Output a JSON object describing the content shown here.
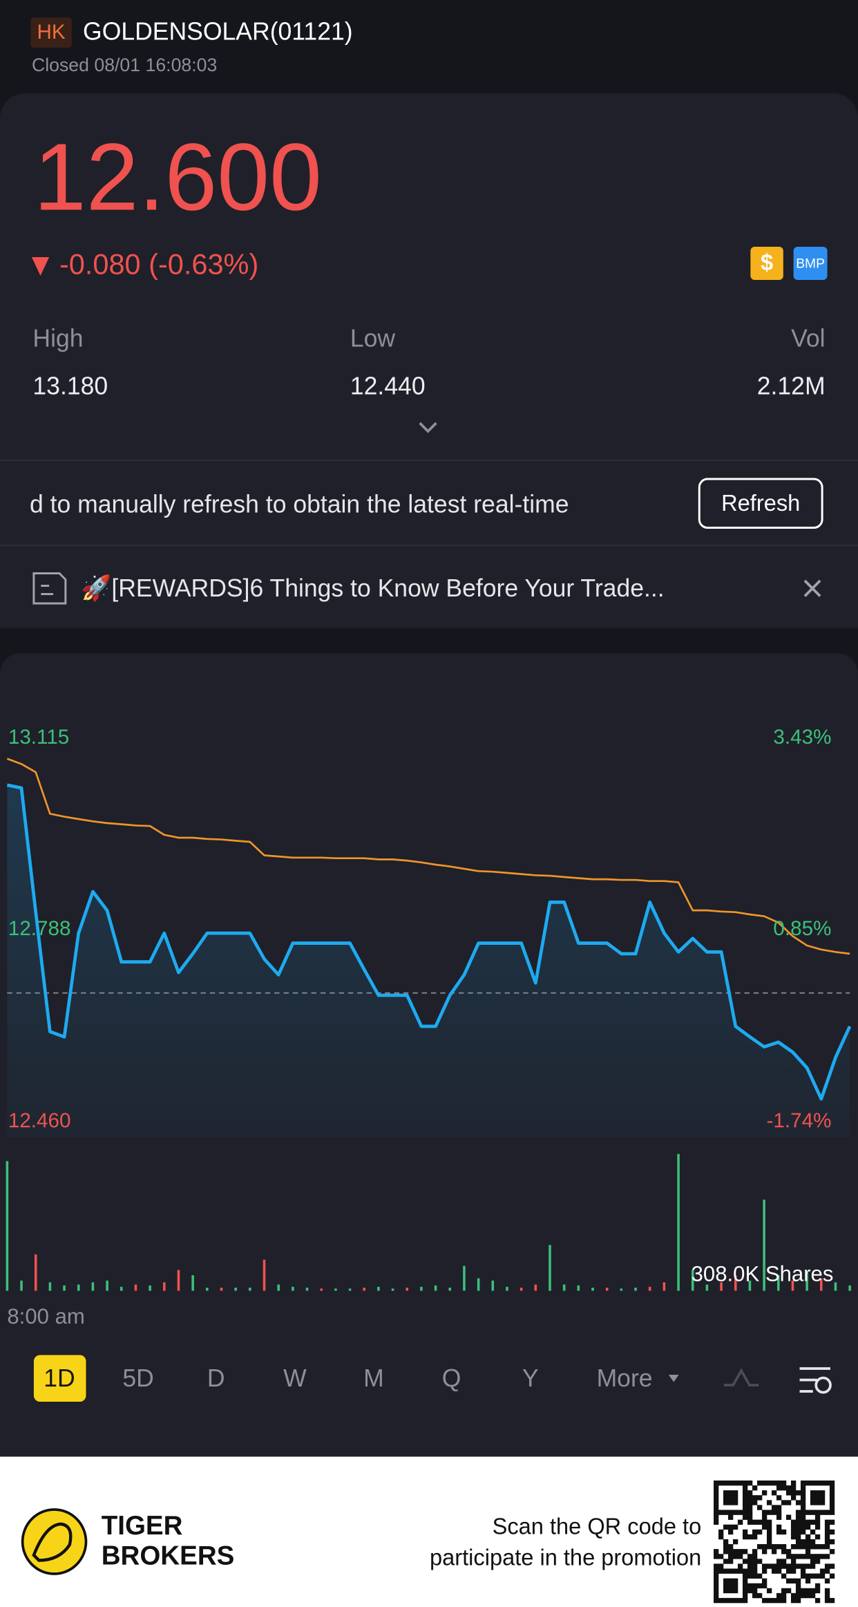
{
  "header": {
    "market": "HK",
    "symbol": "GOLDENSOLAR(01121)",
    "status": "Closed 08/01 16:08:03"
  },
  "quote": {
    "price": "12.600",
    "change": "-0.080 (-0.63%)",
    "badges": [
      "$",
      "BMP"
    ]
  },
  "stats": [
    {
      "label": "High",
      "value": "13.180"
    },
    {
      "label": "Low",
      "value": "12.440"
    },
    {
      "label": "Vol",
      "value": "2.12M"
    }
  ],
  "notice": {
    "text": "d to manually refresh to obtain the latest real-time",
    "button": "Refresh"
  },
  "news": {
    "text": "🚀[REWARDS]6 Things to Know Before Your Trade..."
  },
  "chart_data": {
    "type": "line",
    "x_label": "8:00 am",
    "ylim": [
      12.46,
      13.115
    ],
    "yticks": [
      13.115,
      12.788,
      {
        "value": 12.46,
        "label": "12.460"
      }
    ],
    "y2lim": [
      -1.74,
      3.43
    ],
    "y2ticks": [
      {
        "value": 3.43,
        "label": "3.43%"
      },
      {
        "value": 0.85,
        "label": "0.85%"
      },
      {
        "value": -1.74,
        "label": "-1.74%"
      }
    ],
    "reference": 12.68,
    "up_color": "#3cc07a",
    "down_color": "#ef5350",
    "series": [
      {
        "color": "#1eaaf0",
        "values": [
          13.035,
          13.03,
          12.818,
          12.614,
          12.605,
          12.782,
          12.853,
          12.821,
          12.733,
          12.733,
          12.733,
          12.782,
          12.715,
          12.747,
          12.782,
          12.782,
          12.782,
          12.782,
          12.738,
          12.711,
          12.765,
          12.765,
          12.765,
          12.765,
          12.765,
          12.72,
          12.676,
          12.676,
          12.676,
          12.623,
          12.623,
          12.676,
          12.711,
          12.765,
          12.765,
          12.765,
          12.765,
          12.697,
          12.835,
          12.835,
          12.765,
          12.765,
          12.765,
          12.747,
          12.747,
          12.835,
          12.782,
          12.75,
          12.773,
          12.75,
          12.75,
          12.623,
          12.605,
          12.588,
          12.596,
          12.579,
          12.552,
          12.499,
          12.57,
          12.623
        ]
      },
      {
        "color": "#f0952a",
        "values": [
          13.08,
          13.071,
          13.057,
          12.986,
          12.981,
          12.977,
          12.973,
          12.97,
          12.968,
          12.966,
          12.965,
          12.95,
          12.945,
          12.945,
          12.943,
          12.942,
          12.94,
          12.938,
          12.915,
          12.913,
          12.911,
          12.911,
          12.911,
          12.91,
          12.91,
          12.91,
          12.908,
          12.908,
          12.906,
          12.903,
          12.899,
          12.896,
          12.892,
          12.888,
          12.887,
          12.885,
          12.883,
          12.881,
          12.88,
          12.878,
          12.876,
          12.874,
          12.874,
          12.873,
          12.873,
          12.871,
          12.871,
          12.869,
          12.821,
          12.821,
          12.819,
          12.818,
          12.814,
          12.811,
          12.8,
          12.777,
          12.761,
          12.754,
          12.75,
          12.747
        ]
      }
    ],
    "volume": {
      "label": "308.0K Shares",
      "ylim": [
        0,
        308000
      ],
      "values": [
        292000,
        23000,
        82000,
        19000,
        12000,
        14000,
        19000,
        23000,
        9000,
        14000,
        12000,
        19000,
        47000,
        35000,
        7000,
        7000,
        7000,
        7000,
        70000,
        14000,
        9000,
        7000,
        5000,
        5000,
        5000,
        7000,
        9000,
        5000,
        7000,
        9000,
        12000,
        7000,
        56000,
        28000,
        23000,
        9000,
        7000,
        14000,
        103000,
        14000,
        12000,
        7000,
        7000,
        5000,
        7000,
        9000,
        19000,
        308000,
        47000,
        14000,
        19000,
        35000,
        23000,
        205000,
        35000,
        23000,
        42000,
        28000,
        19000,
        12000
      ],
      "rising": [
        true,
        true,
        false,
        true,
        true,
        true,
        true,
        true,
        true,
        false,
        true,
        false,
        false,
        true,
        true,
        false,
        true,
        true,
        false,
        true,
        true,
        true,
        false,
        true,
        true,
        false,
        true,
        true,
        false,
        true,
        true,
        true,
        true,
        true,
        true,
        true,
        false,
        false,
        true,
        true,
        true,
        true,
        false,
        true,
        true,
        false,
        false,
        true,
        true,
        true,
        false,
        false,
        true,
        true,
        true,
        false,
        true,
        false,
        true,
        true
      ]
    }
  },
  "tabs": {
    "items": [
      "1D",
      "5D",
      "D",
      "W",
      "M",
      "Q",
      "Y",
      "More"
    ],
    "selected": 0
  },
  "footer": {
    "brand": [
      "TIGER",
      "BROKERS"
    ],
    "promo": [
      "Scan the QR code to",
      "participate in the promotion"
    ]
  }
}
